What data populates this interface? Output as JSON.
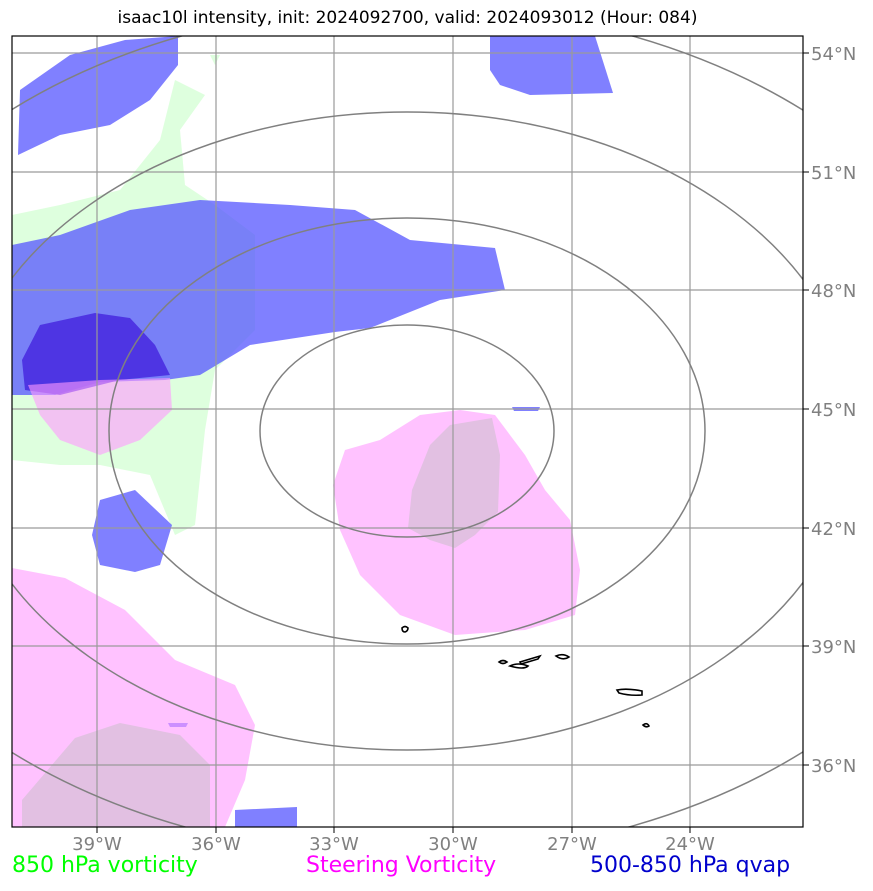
{
  "title": "isaac10l intensity, init: 2024092700, valid: 2024093012 (Hour: 084)",
  "map": {
    "lon_ticks": [
      "39°W",
      "36°W",
      "33°W",
      "30°W",
      "27°W",
      "24°W"
    ],
    "lat_ticks": [
      "54°N",
      "51°N",
      "48°N",
      "45°N",
      "42°N",
      "39°N",
      "36°N"
    ],
    "lon_range": [
      -41.1,
      -21.0
    ],
    "lat_range": [
      34.5,
      54.5
    ]
  },
  "legend": {
    "green": "850 hPa vorticity",
    "pink": "Steering Vorticity",
    "blue": "500-850 hPa qvap"
  },
  "colors": {
    "vorticity_850": "#ccffcc",
    "steering_vorticity": "#ff99ff",
    "qvap": "#5555ff",
    "qvap_dark": "#4422dd",
    "range_rings": "#808080",
    "gridlines": "#999999",
    "coastlines": "#000000"
  }
}
